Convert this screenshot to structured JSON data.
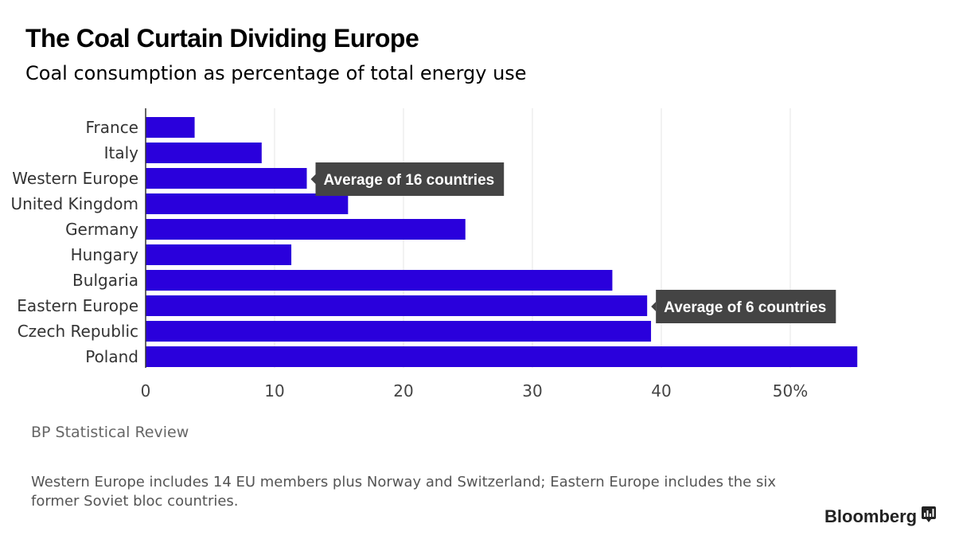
{
  "header": {
    "title": "The Coal Curtain Dividing Europe",
    "subtitle": "Coal consumption as percentage of total energy use"
  },
  "footer": {
    "source": "BP Statistical Review",
    "note": "Western Europe includes 14 EU members plus Norway and Switzerland; Eastern Europe includes the six former Soviet bloc countries.",
    "brand": "Bloomberg",
    "brand_icon": "bloomberg-chart-icon"
  },
  "chart_data": {
    "type": "bar",
    "orientation": "horizontal",
    "title": "The Coal Curtain Dividing Europe",
    "subtitle": "Coal consumption as percentage of total energy use",
    "categories": [
      "France",
      "Italy",
      "Western Europe",
      "United Kingdom",
      "Germany",
      "Hungary",
      "Bulgaria",
      "Eastern Europe",
      "Czech Republic",
      "Poland"
    ],
    "values": [
      3.8,
      9.0,
      12.5,
      15.7,
      24.8,
      11.3,
      36.2,
      38.9,
      39.2,
      55.2
    ],
    "xlim": [
      0,
      55
    ],
    "x_ticks": [
      0,
      10,
      20,
      30,
      40,
      50
    ],
    "x_tick_labels": [
      "0",
      "10",
      "20",
      "30",
      "40",
      "50%"
    ],
    "xlabel": "",
    "ylabel": "",
    "grid": true,
    "bar_color": "#2a00dc",
    "annotations": [
      {
        "category": "Western Europe",
        "text": "Average of 16 countries"
      },
      {
        "category": "Eastern Europe",
        "text": "Average of 6 countries"
      }
    ],
    "annotation_bg": "#444444",
    "annotation_text_color": "#ffffff"
  }
}
